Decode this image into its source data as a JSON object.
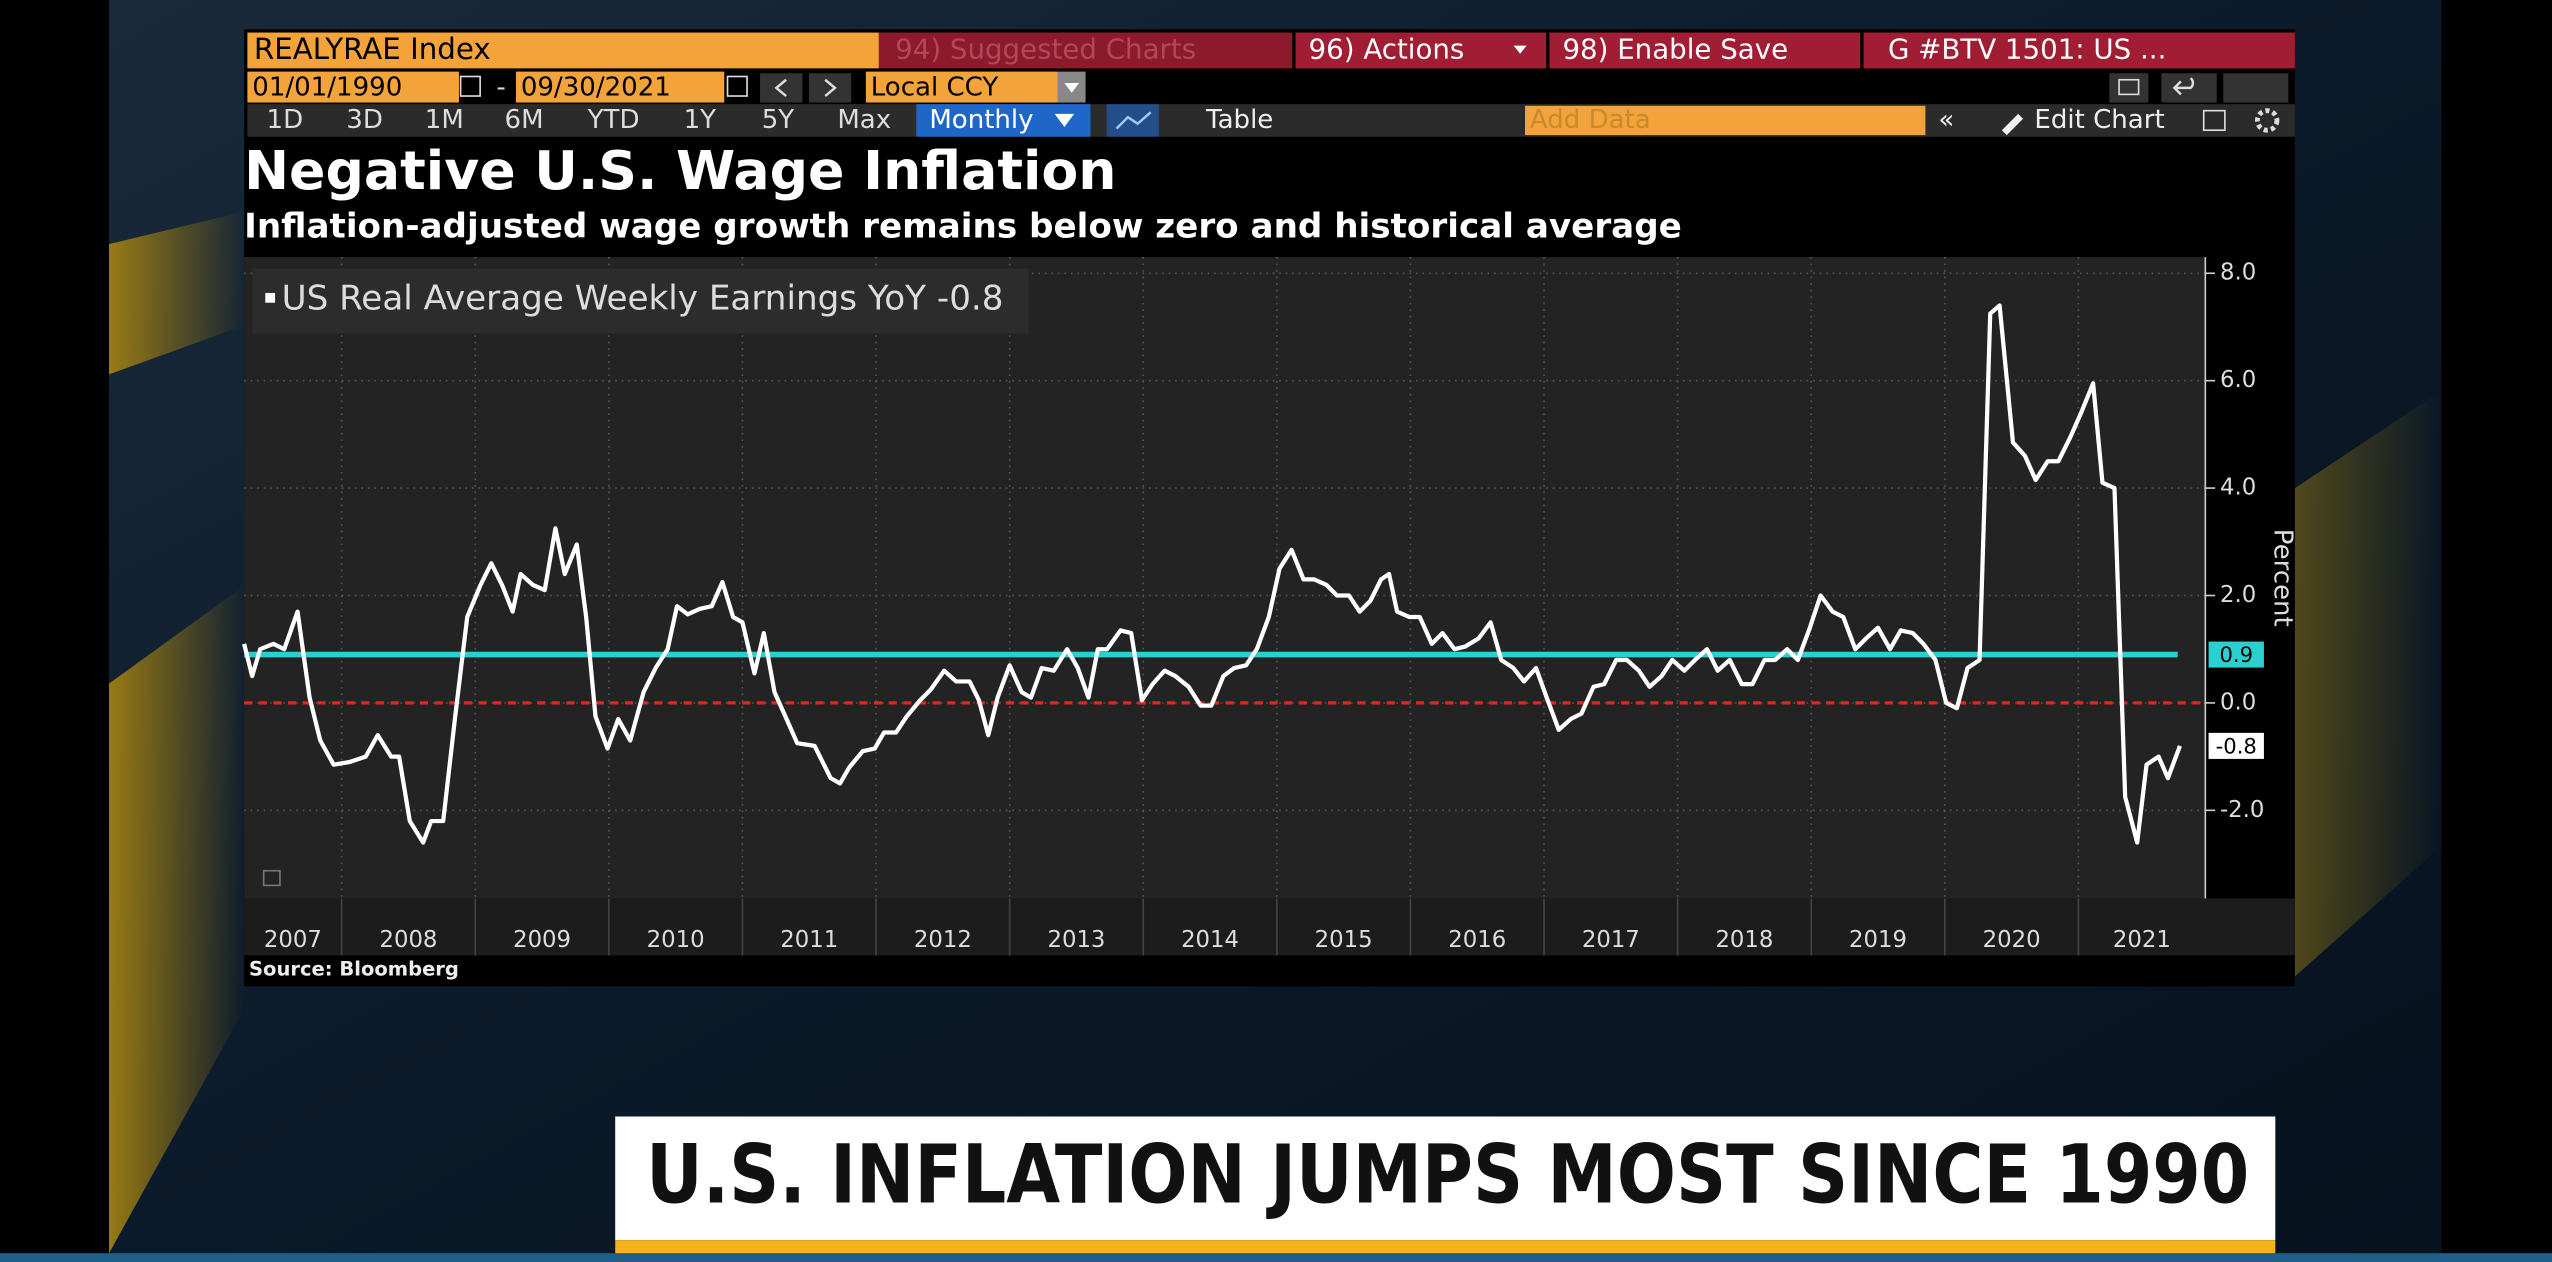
{
  "ui": {
    "ticker": "REALYRAE Index",
    "suggested": "94) Suggested Charts",
    "actions": "96) Actions",
    "enable_save": "98) Enable Save",
    "gtab": "G #BTV 1501: US ...",
    "start_date": "01/01/1990",
    "date_sep": "-",
    "end_date": "09/30/2021",
    "currency": "Local CCY",
    "ranges": [
      "1D",
      "3D",
      "1M",
      "6M",
      "YTD",
      "1Y",
      "5Y",
      "Max"
    ],
    "frequency": "Monthly",
    "table": "Table",
    "add_data": "Add Data",
    "edit_chart": "Edit Chart"
  },
  "banner": "U.S. INFLATION JUMPS MOST SINCE 1990",
  "chart_data": {
    "type": "line",
    "title": "Negative U.S. Wage Inflation",
    "subtitle": "Inflation-adjusted wage growth remains below zero and historical average",
    "y_label": "Percent",
    "source": "Source: Bloomberg",
    "xlim": [
      2007.27,
      2021.95
    ],
    "ylim": [
      -3.64,
      8.3
    ],
    "xticks": [
      {
        "value": 2007.5,
        "label": "2007"
      },
      {
        "value": 2008.5,
        "label": "2008"
      },
      {
        "value": 2009.5,
        "label": "2009"
      },
      {
        "value": 2010.5,
        "label": "2010"
      },
      {
        "value": 2011.5,
        "label": "2011"
      },
      {
        "value": 2012.5,
        "label": "2012"
      },
      {
        "value": 2013.5,
        "label": "2013"
      },
      {
        "value": 2014.5,
        "label": "2014"
      },
      {
        "value": 2015.5,
        "label": "2015"
      },
      {
        "value": 2016.5,
        "label": "2016"
      },
      {
        "value": 2017.5,
        "label": "2017"
      },
      {
        "value": 2018.5,
        "label": "2018"
      },
      {
        "value": 2019.5,
        "label": "2019"
      },
      {
        "value": 2020.5,
        "label": "2020"
      },
      {
        "value": 2021.5,
        "label": "2021"
      }
    ],
    "yticks": [
      {
        "value": 8,
        "label": "8.0"
      },
      {
        "value": 6,
        "label": "6.0"
      },
      {
        "value": 4,
        "label": "4.0"
      },
      {
        "value": 2,
        "label": "2.0"
      },
      {
        "value": 0,
        "label": "0.0"
      },
      {
        "value": -2,
        "label": "-2.0"
      }
    ],
    "grid": true,
    "average_line": {
      "value": 0.9,
      "color": "#2ccfcf"
    },
    "zero_line": {
      "value": 0,
      "color": "#e3241f"
    },
    "x": [
      2007.27,
      2007.33,
      2007.39,
      2007.49,
      2007.57,
      2007.67,
      2007.76,
      2007.84,
      2007.94,
      2008.06,
      2008.18,
      2008.27,
      2008.37,
      2008.43,
      2008.51,
      2008.61,
      2008.67,
      2008.76,
      2008.85,
      2008.94,
      2009.04,
      2009.12,
      2009.2,
      2009.28,
      2009.34,
      2009.43,
      2009.52,
      2009.6,
      2009.67,
      2009.76,
      2009.83,
      2009.9,
      2009.99,
      2010.07,
      2010.16,
      2010.26,
      2010.35,
      2010.44,
      2010.51,
      2010.59,
      2010.68,
      2010.77,
      2010.85,
      2010.93,
      2011.0,
      2011.09,
      2011.16,
      2011.24,
      2011.33,
      2011.41,
      2011.54,
      2011.66,
      2011.73,
      2011.8,
      2011.9,
      2011.99,
      2012.06,
      2012.15,
      2012.23,
      2012.33,
      2012.41,
      2012.51,
      2012.6,
      2012.7,
      2012.77,
      2012.84,
      2012.91,
      2013.0,
      2013.09,
      2013.16,
      2013.24,
      2013.33,
      2013.43,
      2013.51,
      2013.59,
      2013.66,
      2013.73,
      2013.83,
      2013.91,
      2013.99,
      2014.07,
      2014.16,
      2014.24,
      2014.34,
      2014.43,
      2014.51,
      2014.6,
      2014.68,
      2014.77,
      2014.85,
      2014.94,
      2015.02,
      2015.11,
      2015.2,
      2015.28,
      2015.37,
      2015.45,
      2015.54,
      2015.62,
      2015.7,
      2015.78,
      2015.84,
      2015.9,
      2015.99,
      2016.07,
      2016.16,
      2016.24,
      2016.33,
      2016.41,
      2016.51,
      2016.6,
      2016.68,
      2016.77,
      2016.85,
      2016.94,
      2017.02,
      2017.11,
      2017.2,
      2017.28,
      2017.37,
      2017.45,
      2017.54,
      2017.62,
      2017.71,
      2017.79,
      2017.88,
      2017.96,
      2018.05,
      2018.13,
      2018.22,
      2018.3,
      2018.39,
      2018.48,
      2018.56,
      2018.65,
      2018.73,
      2018.82,
      2018.9,
      2018.99,
      2019.07,
      2019.16,
      2019.24,
      2019.33,
      2019.41,
      2019.5,
      2019.59,
      2019.67,
      2019.76,
      2019.84,
      2019.93,
      2020.01,
      2020.09,
      2020.17,
      2020.26,
      2020.34,
      2020.41,
      2020.51,
      2020.6,
      2020.68,
      2020.77,
      2020.85,
      2020.94,
      2021.02,
      2021.11,
      2021.18,
      2021.27,
      2021.35,
      2021.44,
      2021.51,
      2021.6,
      2021.67,
      2021.76
    ],
    "series": [
      {
        "name": "US Real Average Weekly Earnings YoY",
        "color": "#ffffff",
        "values": [
          1.1,
          0.5,
          1.0,
          1.1,
          1.0,
          1.7,
          0.1,
          -0.7,
          -1.15,
          -1.1,
          -1.0,
          -0.6,
          -1.0,
          -1.0,
          -2.2,
          -2.6,
          -2.2,
          -2.2,
          -0.25,
          1.6,
          2.2,
          2.6,
          2.2,
          1.7,
          2.4,
          2.2,
          2.1,
          3.25,
          2.4,
          2.95,
          1.6,
          -0.25,
          -0.85,
          -0.3,
          -0.7,
          0.2,
          0.65,
          1.0,
          1.8,
          1.65,
          1.75,
          1.8,
          2.25,
          1.6,
          1.5,
          0.55,
          1.3,
          0.2,
          -0.3,
          -0.75,
          -0.8,
          -1.4,
          -1.5,
          -1.2,
          -0.9,
          -0.85,
          -0.55,
          -0.55,
          -0.25,
          0.05,
          0.25,
          0.6,
          0.4,
          0.4,
          0.05,
          -0.6,
          0.1,
          0.7,
          0.2,
          0.1,
          0.65,
          0.6,
          1.0,
          0.65,
          0.1,
          1.0,
          1.0,
          1.35,
          1.3,
          0.05,
          0.35,
          0.6,
          0.5,
          0.3,
          -0.05,
          -0.05,
          0.5,
          0.65,
          0.7,
          1.0,
          1.6,
          2.5,
          2.85,
          2.3,
          2.3,
          2.2,
          2.0,
          2.0,
          1.7,
          1.9,
          2.3,
          2.4,
          1.7,
          1.6,
          1.6,
          1.1,
          1.3,
          1.0,
          1.05,
          1.2,
          1.5,
          0.8,
          0.65,
          0.4,
          0.65,
          0.1,
          -0.5,
          -0.3,
          -0.2,
          0.3,
          0.35,
          0.8,
          0.8,
          0.6,
          0.3,
          0.5,
          0.8,
          0.6,
          0.8,
          1.0,
          0.6,
          0.8,
          0.35,
          0.35,
          0.8,
          0.8,
          1.0,
          0.8,
          1.4,
          2.0,
          1.7,
          1.6,
          1.0,
          1.2,
          1.4,
          1.0,
          1.35,
          1.3,
          1.1,
          0.8,
          0.0,
          -0.1,
          0.65,
          0.8,
          7.25,
          7.4,
          4.85,
          4.6,
          4.15,
          4.5,
          4.5,
          4.95,
          5.4,
          5.95,
          4.1,
          4.0,
          -1.75,
          -2.6,
          -1.15,
          -1.0,
          -1.4,
          -0.8
        ]
      }
    ]
  }
}
